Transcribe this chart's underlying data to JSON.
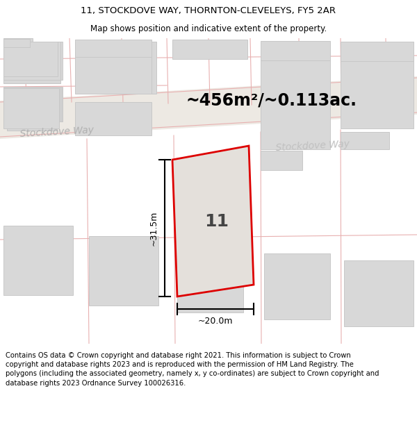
{
  "title_line1": "11, STOCKDOVE WAY, THORNTON-CLEVELEYS, FY5 2AR",
  "title_line2": "Map shows position and indicative extent of the property.",
  "area_text": "~456m²/~0.113ac.",
  "number_label": "11",
  "dim_width": "~20.0m",
  "dim_height": "~31.5m",
  "street_label1": "Stockdove Way",
  "street_label2": "Stockdove Way",
  "footer_text": "Contains OS data © Crown copyright and database right 2021. This information is subject to Crown copyright and database rights 2023 and is reproduced with the permission of HM Land Registry. The polygons (including the associated geometry, namely x, y co-ordinates) are subject to Crown copyright and database rights 2023 Ordnance Survey 100026316.",
  "map_bg": "#f7f5f2",
  "road_fill": "#ede9e3",
  "building_fill": "#d8d8d8",
  "building_edge": "#c8c8c8",
  "subject_fill": "#e4e0db",
  "subject_stroke": "#dd0000",
  "boundary_color": "#e8b0b0",
  "title_fontsize": 9.5,
  "subtitle_fontsize": 8.5,
  "area_fontsize": 17,
  "number_fontsize": 18,
  "street_fontsize": 10,
  "footer_fontsize": 7.2,
  "dim_fontsize": 9
}
